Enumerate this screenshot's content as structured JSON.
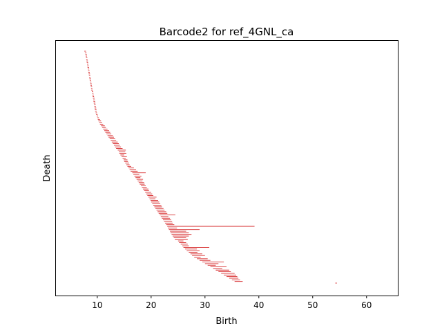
{
  "chart_data": {
    "type": "bar",
    "title": "Barcode2 for ref_4GNL_ca",
    "xlabel": "Birth",
    "ylabel": "Death",
    "xlim": [
      2.2,
      65.8
    ],
    "x_ticks": [
      10,
      20,
      30,
      40,
      50,
      60
    ],
    "x_tick_labels": [
      "10",
      "20",
      "30",
      "40",
      "50",
      "60"
    ],
    "y_ticks": [],
    "grid": false,
    "bar_color": "#d62728",
    "bars": [
      [
        7.6,
        7.9
      ],
      [
        7.7,
        8.0
      ],
      [
        7.8,
        8.05
      ],
      [
        7.85,
        8.1
      ],
      [
        7.9,
        8.15
      ],
      [
        7.95,
        8.2
      ],
      [
        8.0,
        8.25
      ],
      [
        8.05,
        8.3
      ],
      [
        8.1,
        8.35
      ],
      [
        8.15,
        8.4
      ],
      [
        8.2,
        8.45
      ],
      [
        8.25,
        8.5
      ],
      [
        8.3,
        8.55
      ],
      [
        8.35,
        8.6
      ],
      [
        8.4,
        8.65
      ],
      [
        8.45,
        8.7
      ],
      [
        8.5,
        8.75
      ],
      [
        8.55,
        8.8
      ],
      [
        8.6,
        8.85
      ],
      [
        8.65,
        8.9
      ],
      [
        8.7,
        8.95
      ],
      [
        8.75,
        9.0
      ],
      [
        8.8,
        9.05
      ],
      [
        8.85,
        9.1
      ],
      [
        8.9,
        9.15
      ],
      [
        9.0,
        9.25
      ],
      [
        9.05,
        9.3
      ],
      [
        9.1,
        9.35
      ],
      [
        9.15,
        9.4
      ],
      [
        9.2,
        9.5
      ],
      [
        9.25,
        9.55
      ],
      [
        9.3,
        9.6
      ],
      [
        9.35,
        9.65
      ],
      [
        9.4,
        9.7
      ],
      [
        9.45,
        9.75
      ],
      [
        9.5,
        9.8
      ],
      [
        9.55,
        9.85
      ],
      [
        9.6,
        9.9
      ],
      [
        9.7,
        9.95
      ],
      [
        9.8,
        10.05
      ],
      [
        9.9,
        10.15
      ],
      [
        10.0,
        10.3
      ],
      [
        10.1,
        10.5
      ],
      [
        10.2,
        10.7
      ],
      [
        10.35,
        10.9
      ],
      [
        10.5,
        11.1
      ],
      [
        10.7,
        11.4
      ],
      [
        10.9,
        11.6
      ],
      [
        11.1,
        11.9
      ],
      [
        11.3,
        12.2
      ],
      [
        11.5,
        12.4
      ],
      [
        11.7,
        12.6
      ],
      [
        11.9,
        12.9
      ],
      [
        12.1,
        13.1
      ],
      [
        12.3,
        13.3
      ],
      [
        12.5,
        13.5
      ],
      [
        12.7,
        13.8
      ],
      [
        12.9,
        14.0
      ],
      [
        13.1,
        14.2
      ],
      [
        13.3,
        14.4
      ],
      [
        13.5,
        14.7
      ],
      [
        13.8,
        15.3
      ],
      [
        14.0,
        15.2
      ],
      [
        14.1,
        15.4
      ],
      [
        14.3,
        15.0
      ],
      [
        14.5,
        15.5
      ],
      [
        14.7,
        15.3
      ],
      [
        14.9,
        15.6
      ],
      [
        15.0,
        15.7
      ],
      [
        15.2,
        15.9
      ],
      [
        15.4,
        16.0
      ],
      [
        15.6,
        16.3
      ],
      [
        15.8,
        16.8
      ],
      [
        16.0,
        17.2
      ],
      [
        16.2,
        17.5
      ],
      [
        16.5,
        19.0
      ],
      [
        16.7,
        17.8
      ],
      [
        16.9,
        18.2
      ],
      [
        17.1,
        18.0
      ],
      [
        17.3,
        18.5
      ],
      [
        17.5,
        18.4
      ],
      [
        17.7,
        18.7
      ],
      [
        17.9,
        18.8
      ],
      [
        18.1,
        19.0
      ],
      [
        18.3,
        19.2
      ],
      [
        18.5,
        19.5
      ],
      [
        18.7,
        19.6
      ],
      [
        18.9,
        20.0
      ],
      [
        19.1,
        20.2
      ],
      [
        19.3,
        20.4
      ],
      [
        19.5,
        21.0
      ],
      [
        19.7,
        20.8
      ],
      [
        19.9,
        21.3
      ],
      [
        20.0,
        21.5
      ],
      [
        20.2,
        21.7
      ],
      [
        20.4,
        21.9
      ],
      [
        20.6,
        22.0
      ],
      [
        20.8,
        22.3
      ],
      [
        21.0,
        22.5
      ],
      [
        21.2,
        22.8
      ],
      [
        21.4,
        23.0
      ],
      [
        21.6,
        24.5
      ],
      [
        21.8,
        23.2
      ],
      [
        22.0,
        23.5
      ],
      [
        22.2,
        23.7
      ],
      [
        22.4,
        23.9
      ],
      [
        22.6,
        24.0
      ],
      [
        22.8,
        24.3
      ],
      [
        23.0,
        39.2
      ],
      [
        23.1,
        24.8
      ],
      [
        23.3,
        29.0
      ],
      [
        23.5,
        26.5
      ],
      [
        23.6,
        27.0
      ],
      [
        23.8,
        27.5
      ],
      [
        24.0,
        27.0
      ],
      [
        24.2,
        26.5
      ],
      [
        24.4,
        26.8
      ],
      [
        25.0,
        26.0
      ],
      [
        25.2,
        26.5
      ],
      [
        25.5,
        26.8
      ],
      [
        25.8,
        27.0
      ],
      [
        26.0,
        30.8
      ],
      [
        26.3,
        28.5
      ],
      [
        26.6,
        29.0
      ],
      [
        27.0,
        28.6
      ],
      [
        27.3,
        29.5
      ],
      [
        27.6,
        30.0
      ],
      [
        28.0,
        29.2
      ],
      [
        28.5,
        30.5
      ],
      [
        29.0,
        31.0
      ],
      [
        29.5,
        33.5
      ],
      [
        30.0,
        32.5
      ],
      [
        30.5,
        32.0
      ],
      [
        31.0,
        34.0
      ],
      [
        31.5,
        33.2
      ],
      [
        32.0,
        34.5
      ],
      [
        32.5,
        34.8
      ],
      [
        33.0,
        35.5
      ],
      [
        33.5,
        35.8
      ],
      [
        34.0,
        36.0
      ],
      [
        34.5,
        36.2
      ],
      [
        35.0,
        36.5
      ],
      [
        35.5,
        37.0
      ],
      [
        54.2,
        54.5
      ]
    ]
  }
}
